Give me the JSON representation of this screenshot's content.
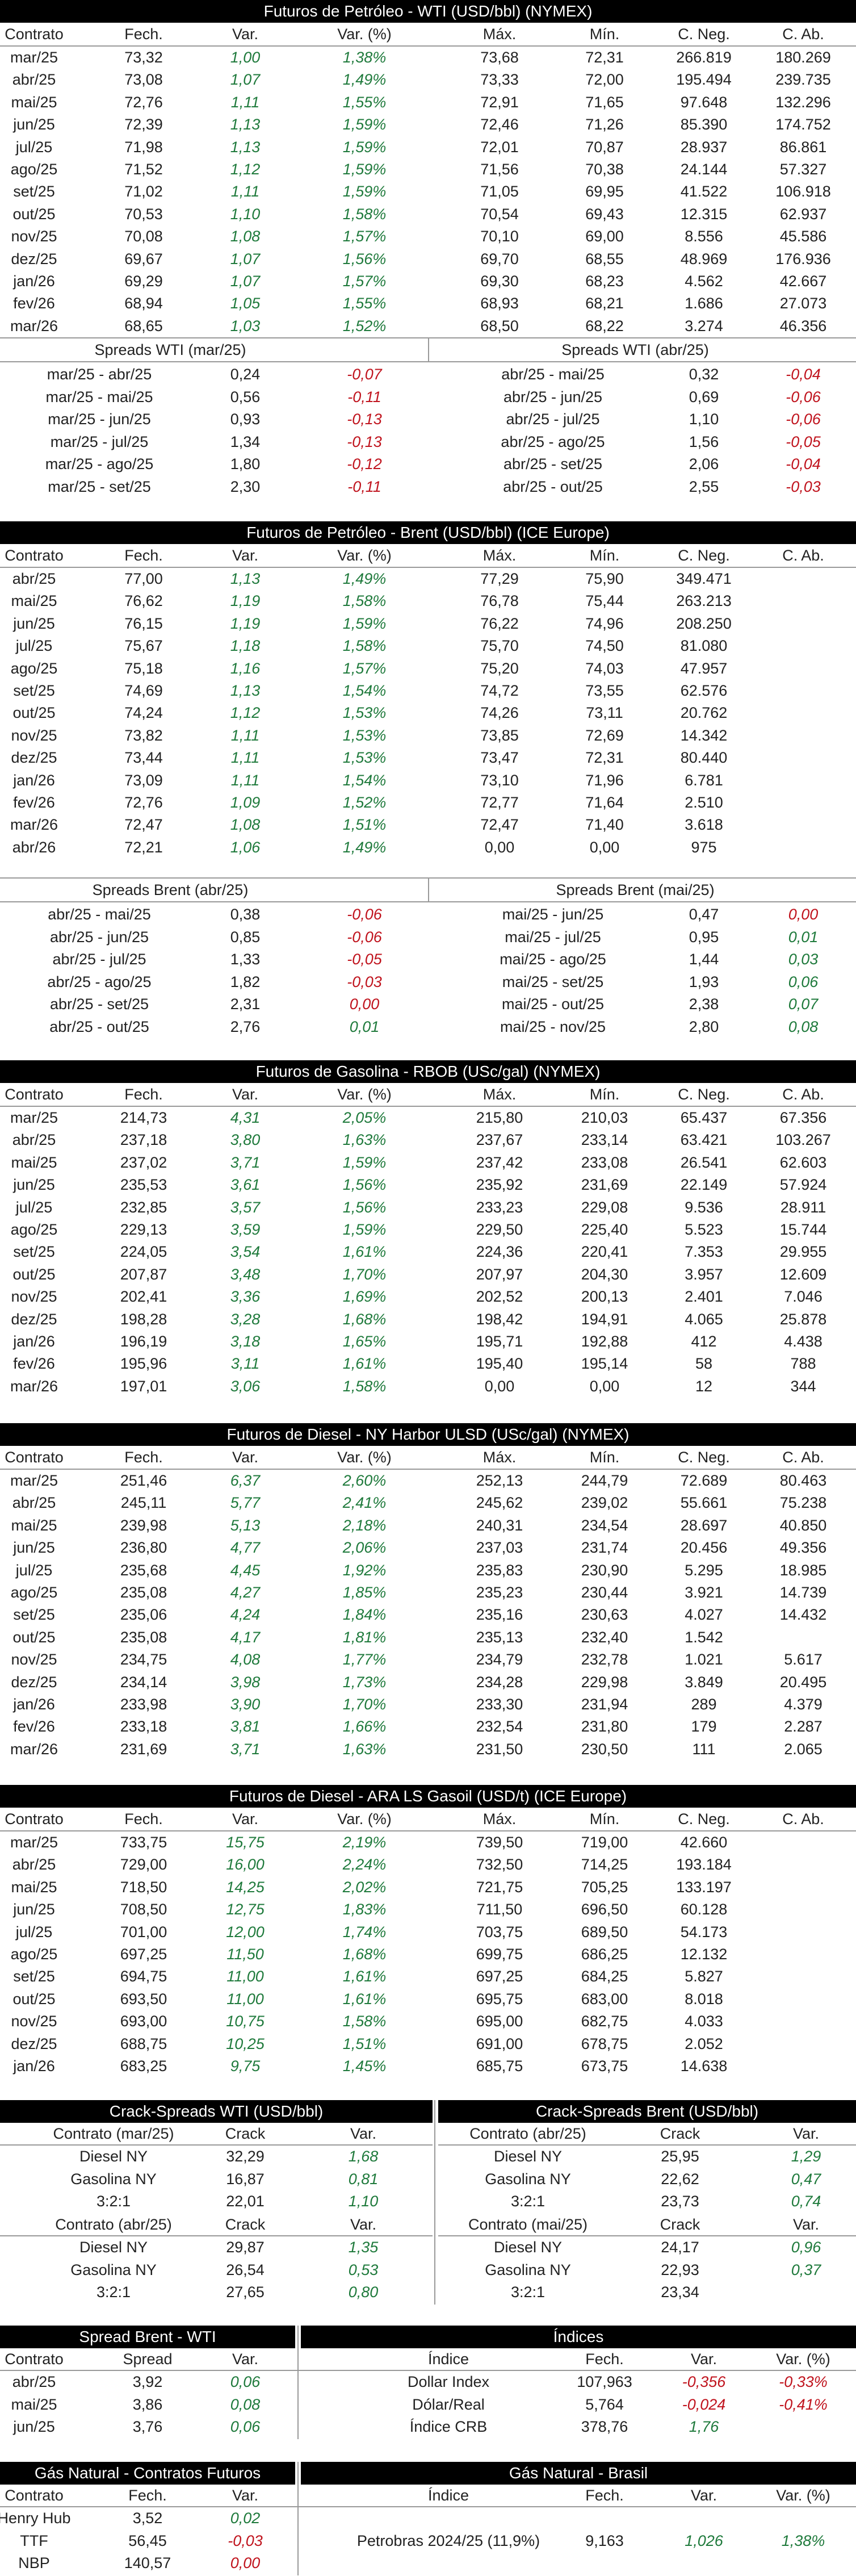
{
  "wti": {
    "title": "Futuros de Petróleo - WTI (USD/bbl) (NYMEX)",
    "headers": [
      "Contrato",
      "Fech.",
      "Var.",
      "Var. (%)",
      "Máx.",
      "Mín.",
      "C. Neg.",
      "C. Ab."
    ],
    "rows": [
      [
        "mar/25",
        "73,32",
        "1,00",
        "1,38%",
        "73,68",
        "72,31",
        "266.819",
        "180.269"
      ],
      [
        "abr/25",
        "73,08",
        "1,07",
        "1,49%",
        "73,33",
        "72,00",
        "195.494",
        "239.735"
      ],
      [
        "mai/25",
        "72,76",
        "1,11",
        "1,55%",
        "72,91",
        "71,65",
        "97.648",
        "132.296"
      ],
      [
        "jun/25",
        "72,39",
        "1,13",
        "1,59%",
        "72,46",
        "71,26",
        "85.390",
        "174.752"
      ],
      [
        "jul/25",
        "71,98",
        "1,13",
        "1,59%",
        "72,01",
        "70,87",
        "28.937",
        "86.861"
      ],
      [
        "ago/25",
        "71,52",
        "1,12",
        "1,59%",
        "71,56",
        "70,38",
        "24.144",
        "57.327"
      ],
      [
        "set/25",
        "71,02",
        "1,11",
        "1,59%",
        "71,05",
        "69,95",
        "41.522",
        "106.918"
      ],
      [
        "out/25",
        "70,53",
        "1,10",
        "1,58%",
        "70,54",
        "69,43",
        "12.315",
        "62.937"
      ],
      [
        "nov/25",
        "70,08",
        "1,08",
        "1,57%",
        "70,10",
        "69,00",
        "8.556",
        "45.586"
      ],
      [
        "dez/25",
        "69,67",
        "1,07",
        "1,56%",
        "69,70",
        "68,55",
        "48.969",
        "176.936"
      ],
      [
        "jan/26",
        "69,29",
        "1,07",
        "1,57%",
        "69,30",
        "68,23",
        "4.562",
        "42.667"
      ],
      [
        "fev/26",
        "68,94",
        "1,05",
        "1,55%",
        "68,93",
        "68,21",
        "1.686",
        "27.073"
      ],
      [
        "mar/26",
        "68,65",
        "1,03",
        "1,52%",
        "68,50",
        "68,22",
        "3.274",
        "46.356"
      ]
    ],
    "spreads_left_title": "Spreads WTI (mar/25)",
    "spreads_left": [
      [
        "mar/25 - abr/25",
        "0,24",
        "-0,07"
      ],
      [
        "mar/25 - mai/25",
        "0,56",
        "-0,11"
      ],
      [
        "mar/25 - jun/25",
        "0,93",
        "-0,13"
      ],
      [
        "mar/25 - jul/25",
        "1,34",
        "-0,13"
      ],
      [
        "mar/25 - ago/25",
        "1,80",
        "-0,12"
      ],
      [
        "mar/25 - set/25",
        "2,30",
        "-0,11"
      ]
    ],
    "spreads_right_title": "Spreads WTI (abr/25)",
    "spreads_right": [
      [
        "abr/25 - mai/25",
        "0,32",
        "-0,04"
      ],
      [
        "abr/25 - jun/25",
        "0,69",
        "-0,06"
      ],
      [
        "abr/25 - jul/25",
        "1,10",
        "-0,06"
      ],
      [
        "abr/25 - ago/25",
        "1,56",
        "-0,05"
      ],
      [
        "abr/25 - set/25",
        "2,06",
        "-0,04"
      ],
      [
        "abr/25 - out/25",
        "2,55",
        "-0,03"
      ]
    ]
  },
  "brent": {
    "title": "Futuros de Petróleo - Brent (USD/bbl) (ICE Europe)",
    "headers": [
      "Contrato",
      "Fech.",
      "Var.",
      "Var. (%)",
      "Máx.",
      "Mín.",
      "C. Neg.",
      "C. Ab."
    ],
    "rows": [
      [
        "abr/25",
        "77,00",
        "1,13",
        "1,49%",
        "77,29",
        "75,90",
        "349.471",
        ""
      ],
      [
        "mai/25",
        "76,62",
        "1,19",
        "1,58%",
        "76,78",
        "75,44",
        "263.213",
        ""
      ],
      [
        "jun/25",
        "76,15",
        "1,19",
        "1,59%",
        "76,22",
        "74,96",
        "208.250",
        ""
      ],
      [
        "jul/25",
        "75,67",
        "1,18",
        "1,58%",
        "75,70",
        "74,50",
        "81.080",
        ""
      ],
      [
        "ago/25",
        "75,18",
        "1,16",
        "1,57%",
        "75,20",
        "74,03",
        "47.957",
        ""
      ],
      [
        "set/25",
        "74,69",
        "1,13",
        "1,54%",
        "74,72",
        "73,55",
        "62.576",
        ""
      ],
      [
        "out/25",
        "74,24",
        "1,12",
        "1,53%",
        "74,26",
        "73,11",
        "20.762",
        ""
      ],
      [
        "nov/25",
        "73,82",
        "1,11",
        "1,53%",
        "73,85",
        "72,69",
        "14.342",
        ""
      ],
      [
        "dez/25",
        "73,44",
        "1,11",
        "1,53%",
        "73,47",
        "72,31",
        "80.440",
        ""
      ],
      [
        "jan/26",
        "73,09",
        "1,11",
        "1,54%",
        "73,10",
        "71,96",
        "6.781",
        ""
      ],
      [
        "fev/26",
        "72,76",
        "1,09",
        "1,52%",
        "72,77",
        "71,64",
        "2.510",
        ""
      ],
      [
        "mar/26",
        "72,47",
        "1,08",
        "1,51%",
        "72,47",
        "71,40",
        "3.618",
        ""
      ],
      [
        "abr/26",
        "72,21",
        "1,06",
        "1,49%",
        "0,00",
        "0,00",
        "975",
        ""
      ]
    ],
    "spreads_left_title": "Spreads Brent (abr/25)",
    "spreads_left": [
      [
        "abr/25 - mai/25",
        "0,38",
        "-0,06"
      ],
      [
        "abr/25 - jun/25",
        "0,85",
        "-0,06"
      ],
      [
        "abr/25 - jul/25",
        "1,33",
        "-0,05"
      ],
      [
        "abr/25 - ago/25",
        "1,82",
        "-0,03"
      ],
      [
        "abr/25 - set/25",
        "2,31",
        "0,00"
      ],
      [
        "abr/25 - out/25",
        "2,76",
        "0,01"
      ]
    ],
    "spreads_right_title": "Spreads Brent (mai/25)",
    "spreads_right": [
      [
        "mai/25 - jun/25",
        "0,47",
        "0,00"
      ],
      [
        "mai/25 - jul/25",
        "0,95",
        "0,01"
      ],
      [
        "mai/25 - ago/25",
        "1,44",
        "0,03"
      ],
      [
        "mai/25 - set/25",
        "1,93",
        "0,06"
      ],
      [
        "mai/25 - out/25",
        "2,38",
        "0,07"
      ],
      [
        "mai/25 - nov/25",
        "2,80",
        "0,08"
      ]
    ]
  },
  "rbob": {
    "title": "Futuros de Gasolina - RBOB (USc/gal) (NYMEX)",
    "headers": [
      "Contrato",
      "Fech.",
      "Var.",
      "Var. (%)",
      "Máx.",
      "Mín.",
      "C. Neg.",
      "C. Ab."
    ],
    "rows": [
      [
        "mar/25",
        "214,73",
        "4,31",
        "2,05%",
        "215,80",
        "210,03",
        "65.437",
        "67.356"
      ],
      [
        "abr/25",
        "237,18",
        "3,80",
        "1,63%",
        "237,67",
        "233,14",
        "63.421",
        "103.267"
      ],
      [
        "mai/25",
        "237,02",
        "3,71",
        "1,59%",
        "237,42",
        "233,08",
        "26.541",
        "62.603"
      ],
      [
        "jun/25",
        "235,53",
        "3,61",
        "1,56%",
        "235,92",
        "231,69",
        "22.149",
        "57.924"
      ],
      [
        "jul/25",
        "232,85",
        "3,57",
        "1,56%",
        "233,23",
        "229,08",
        "9.536",
        "28.911"
      ],
      [
        "ago/25",
        "229,13",
        "3,59",
        "1,59%",
        "229,50",
        "225,40",
        "5.523",
        "15.744"
      ],
      [
        "set/25",
        "224,05",
        "3,54",
        "1,61%",
        "224,36",
        "220,41",
        "7.353",
        "29.955"
      ],
      [
        "out/25",
        "207,87",
        "3,48",
        "1,70%",
        "207,97",
        "204,30",
        "3.957",
        "12.609"
      ],
      [
        "nov/25",
        "202,41",
        "3,36",
        "1,69%",
        "202,52",
        "200,13",
        "2.401",
        "7.046"
      ],
      [
        "dez/25",
        "198,28",
        "3,28",
        "1,68%",
        "198,42",
        "194,91",
        "4.065",
        "25.878"
      ],
      [
        "jan/26",
        "196,19",
        "3,18",
        "1,65%",
        "195,71",
        "192,88",
        "412",
        "4.438"
      ],
      [
        "fev/26",
        "195,96",
        "3,11",
        "1,61%",
        "195,40",
        "195,14",
        "58",
        "788"
      ],
      [
        "mar/26",
        "197,01",
        "3,06",
        "1,58%",
        "0,00",
        "0,00",
        "12",
        "344"
      ]
    ]
  },
  "ulsd": {
    "title": "Futuros de Diesel - NY Harbor ULSD (USc/gal) (NYMEX)",
    "headers": [
      "Contrato",
      "Fech.",
      "Var.",
      "Var. (%)",
      "Máx.",
      "Mín.",
      "C. Neg.",
      "C. Ab."
    ],
    "rows": [
      [
        "mar/25",
        "251,46",
        "6,37",
        "2,60%",
        "252,13",
        "244,79",
        "72.689",
        "80.463"
      ],
      [
        "abr/25",
        "245,11",
        "5,77",
        "2,41%",
        "245,62",
        "239,02",
        "55.661",
        "75.238"
      ],
      [
        "mai/25",
        "239,98",
        "5,13",
        "2,18%",
        "240,31",
        "234,54",
        "28.697",
        "40.850"
      ],
      [
        "jun/25",
        "236,80",
        "4,77",
        "2,06%",
        "237,03",
        "231,74",
        "20.456",
        "49.356"
      ],
      [
        "jul/25",
        "235,68",
        "4,45",
        "1,92%",
        "235,83",
        "230,90",
        "5.295",
        "18.985"
      ],
      [
        "ago/25",
        "235,08",
        "4,27",
        "1,85%",
        "235,23",
        "230,44",
        "3.921",
        "14.739"
      ],
      [
        "set/25",
        "235,06",
        "4,24",
        "1,84%",
        "235,16",
        "230,63",
        "4.027",
        "14.432"
      ],
      [
        "out/25",
        "235,08",
        "4,17",
        "1,81%",
        "235,13",
        "232,40",
        "1.542",
        ""
      ],
      [
        "nov/25",
        "234,75",
        "4,08",
        "1,77%",
        "234,79",
        "232,78",
        "1.021",
        "5.617"
      ],
      [
        "dez/25",
        "234,14",
        "3,98",
        "1,73%",
        "234,28",
        "229,98",
        "3.849",
        "20.495"
      ],
      [
        "jan/26",
        "233,98",
        "3,90",
        "1,70%",
        "233,30",
        "231,94",
        "289",
        "4.379"
      ],
      [
        "fev/26",
        "233,18",
        "3,81",
        "1,66%",
        "232,54",
        "231,80",
        "179",
        "2.287"
      ],
      [
        "mar/26",
        "231,69",
        "3,71",
        "1,63%",
        "231,50",
        "230,50",
        "111",
        "2.065"
      ]
    ]
  },
  "gasoil": {
    "title": "Futuros de Diesel - ARA LS Gasoil (USD/t) (ICE Europe)",
    "headers": [
      "Contrato",
      "Fech.",
      "Var.",
      "Var. (%)",
      "Máx.",
      "Mín.",
      "C. Neg.",
      "C. Ab."
    ],
    "rows": [
      [
        "mar/25",
        "733,75",
        "15,75",
        "2,19%",
        "739,50",
        "719,00",
        "42.660",
        ""
      ],
      [
        "abr/25",
        "729,00",
        "16,00",
        "2,24%",
        "732,50",
        "714,25",
        "193.184",
        ""
      ],
      [
        "mai/25",
        "718,50",
        "14,25",
        "2,02%",
        "721,75",
        "705,25",
        "133.197",
        ""
      ],
      [
        "jun/25",
        "708,50",
        "12,75",
        "1,83%",
        "711,50",
        "696,50",
        "60.128",
        ""
      ],
      [
        "jul/25",
        "701,00",
        "12,00",
        "1,74%",
        "703,75",
        "689,50",
        "54.173",
        ""
      ],
      [
        "ago/25",
        "697,25",
        "11,50",
        "1,68%",
        "699,75",
        "686,25",
        "12.132",
        ""
      ],
      [
        "set/25",
        "694,75",
        "11,00",
        "1,61%",
        "697,25",
        "684,25",
        "5.827",
        ""
      ],
      [
        "out/25",
        "693,50",
        "11,00",
        "1,61%",
        "695,75",
        "683,00",
        "8.018",
        ""
      ],
      [
        "nov/25",
        "693,00",
        "10,75",
        "1,58%",
        "695,00",
        "682,75",
        "4.033",
        ""
      ],
      [
        "dez/25",
        "688,75",
        "10,25",
        "1,51%",
        "691,00",
        "678,75",
        "2.052",
        ""
      ],
      [
        "jan/26",
        "683,25",
        "9,75",
        "1,45%",
        "685,75",
        "673,75",
        "14.638",
        ""
      ]
    ]
  },
  "crack": {
    "wti_title": "Crack-Spreads WTI (USD/bbl)",
    "brent_title": "Crack-Spreads Brent (USD/bbl)",
    "headers_left_1": [
      "Contrato (mar/25)",
      "Crack",
      "Var."
    ],
    "left_1": [
      [
        "Diesel NY",
        "32,29",
        "1,68"
      ],
      [
        "Gasolina NY",
        "16,87",
        "0,81"
      ],
      [
        "3:2:1",
        "22,01",
        "1,10"
      ]
    ],
    "headers_left_2": [
      "Contrato (abr/25)",
      "Crack",
      "Var."
    ],
    "left_2": [
      [
        "Diesel NY",
        "29,87",
        "1,35"
      ],
      [
        "Gasolina NY",
        "26,54",
        "0,53"
      ],
      [
        "3:2:1",
        "27,65",
        "0,80"
      ]
    ],
    "headers_right_1": [
      "Contrato (abr/25)",
      "Crack",
      "Var."
    ],
    "right_1": [
      [
        "Diesel NY",
        "25,95",
        "1,29"
      ],
      [
        "Gasolina NY",
        "22,62",
        "0,47"
      ],
      [
        "3:2:1",
        "23,73",
        "0,74"
      ]
    ],
    "headers_right_2": [
      "Contrato (mai/25)",
      "Crack",
      "Var."
    ],
    "right_2": [
      [
        "Diesel NY",
        "24,17",
        "0,96"
      ],
      [
        "Gasolina NY",
        "22,93",
        "0,37"
      ],
      [
        "3:2:1",
        "23,34",
        ""
      ]
    ]
  },
  "spread_bw": {
    "title": "Spread Brent - WTI",
    "headers": [
      "Contrato",
      "Spread",
      "Var."
    ],
    "rows": [
      [
        "abr/25",
        "3,92",
        "0,06"
      ],
      [
        "mai/25",
        "3,86",
        "0,08"
      ],
      [
        "jun/25",
        "3,76",
        "0,06"
      ]
    ]
  },
  "indices": {
    "title": "Índices",
    "headers": [
      "Índice",
      "Fech.",
      "Var.",
      "Var. (%)"
    ],
    "rows": [
      [
        "Dollar Index",
        "107,963",
        "-0,356",
        "-0,33%"
      ],
      [
        "Dólar/Real",
        "5,764",
        "-0,024",
        "-0,41%"
      ],
      [
        "Índice CRB",
        "378,76",
        "1,76",
        ""
      ]
    ]
  },
  "gas": {
    "title": "Gás Natural - Contratos Futuros",
    "headers": [
      "Contrato",
      "Fech.",
      "Var."
    ],
    "rows": [
      [
        "Henry Hub",
        "3,52",
        "0,02"
      ],
      [
        "TTF",
        "56,45",
        "-0,03"
      ],
      [
        "NBP",
        "140,57",
        "0,00"
      ]
    ]
  },
  "gas_br": {
    "title": "Gás Natural - Brasil",
    "headers": [
      "Índice",
      "Fech.",
      "Var.",
      "Var. (%)"
    ],
    "rows": [
      [
        "Petrobras 2024/25 (11,9%)",
        "9,163",
        "1,026",
        "1,38%"
      ]
    ]
  },
  "colors": {
    "positive": "#1f7a3c",
    "negative": "#c0141e",
    "header_bg": "#000000"
  }
}
